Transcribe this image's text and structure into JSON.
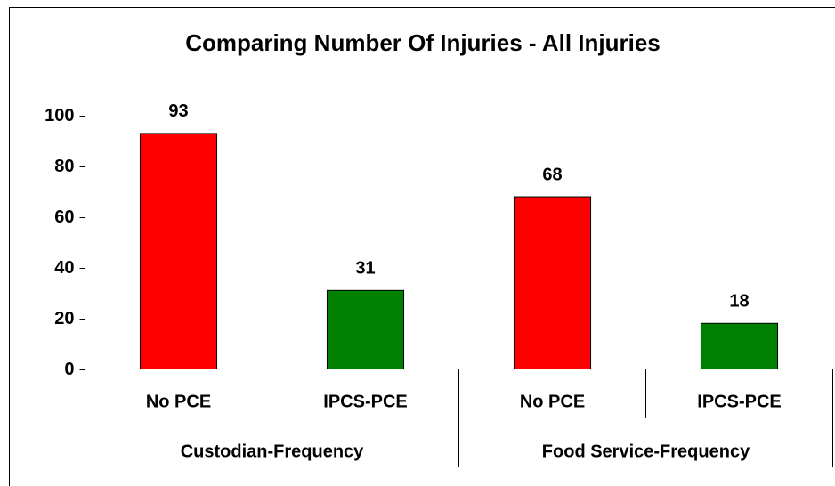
{
  "chart_data": {
    "type": "bar",
    "title": "Comparing Number Of Injuries - All Injuries",
    "groups": [
      "Custodian-Frequency",
      "Food Service-Frequency"
    ],
    "categories": [
      "No PCE",
      "IPCS-PCE",
      "No PCE",
      "IPCS-PCE"
    ],
    "values": [
      93,
      31,
      68,
      18
    ],
    "colors": [
      "#ff0000",
      "#008000",
      "#ff0000",
      "#008000"
    ],
    "ylim": [
      0,
      100
    ],
    "yticks": [
      0,
      20,
      40,
      60,
      80,
      100
    ],
    "grid": false
  }
}
